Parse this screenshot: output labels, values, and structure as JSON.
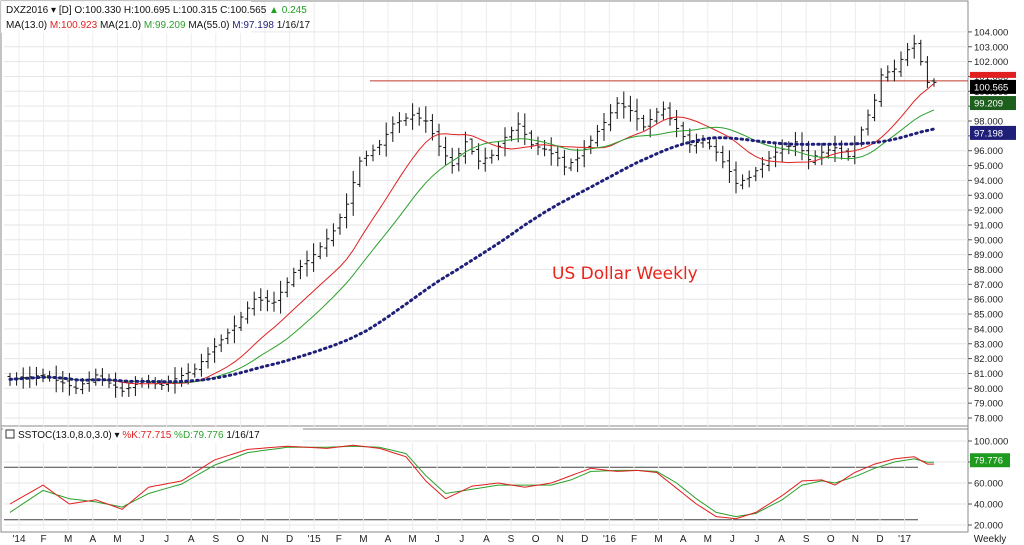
{
  "header": {
    "line1": {
      "symbol": "DXZ2016",
      "interval": "[D]",
      "open": "O:100.330",
      "high": "H:100.695",
      "low": "L:100.315",
      "close": "C:100.565",
      "change": "0.245"
    },
    "line2": {
      "ma13_label": "MA(13.0)",
      "ma13_value": "M:100.923",
      "ma21_label": "MA(21.0)",
      "ma21_value": "M:99.209",
      "ma55_label": "MA(55.0)",
      "ma55_value": "M:97.198",
      "date": "1/16/17"
    },
    "stoch": {
      "label": "SSTOC(13.0,8.0,3.0)",
      "k_value": "%K:77.715",
      "d_value": "%D:79.776",
      "date": "1/16/17"
    }
  },
  "annotation": "US Dollar Weekly",
  "colors": {
    "red": "#e02020",
    "green": "#2ca02c",
    "navy": "#1f1f7a",
    "price_bars": "#111111",
    "resistance": "#c0392b",
    "grid": "#e2e2e2"
  },
  "chart_data": [
    {
      "type": "ohlc",
      "name": "price-panel",
      "ylim": [
        77.5,
        105.0
      ],
      "y_ticks": [
        "78.000",
        "79.000",
        "80.000",
        "81.000",
        "82.000",
        "83.000",
        "84.000",
        "85.000",
        "86.000",
        "87.000",
        "88.000",
        "89.000",
        "90.000",
        "91.000",
        "92.000",
        "93.000",
        "94.000",
        "95.000",
        "96.000",
        "97.000",
        "98.000",
        "99.000",
        "100.000",
        "101.000",
        "102.000",
        "103.000",
        "104.000"
      ],
      "x_labels": [
        "'14",
        "F",
        "M",
        "A",
        "M",
        "J",
        "J",
        "A",
        "S",
        "O",
        "N",
        "D",
        "'15",
        "F",
        "M",
        "A",
        "M",
        "J",
        "J",
        "A",
        "S",
        "O",
        "N",
        "D",
        "'16",
        "F",
        "M",
        "A",
        "M",
        "J",
        "J",
        "A",
        "S",
        "O",
        "N",
        "D",
        "'17",
        "Weekly"
      ],
      "price_tags": [
        {
          "label": "100.565",
          "value": 100.565,
          "bg": "#000000",
          "fg": "#ffffff"
        },
        {
          "label": "99.209",
          "value": 99.209,
          "bg": "#1d5f1d",
          "fg": "#ffffff"
        },
        {
          "label": "97.198",
          "value": 97.198,
          "bg": "#1f1f7a",
          "fg": "#ffffff"
        }
      ],
      "resistance_level": 100.7,
      "anchors": [
        [
          0,
          80.6
        ],
        [
          5,
          80.9
        ],
        [
          10,
          80.0
        ],
        [
          13,
          80.9
        ],
        [
          17,
          79.8
        ],
        [
          20,
          80.5
        ],
        [
          23,
          80.2
        ],
        [
          28,
          81.3
        ],
        [
          31,
          82.8
        ],
        [
          34,
          84.2
        ],
        [
          37,
          86.0
        ],
        [
          40,
          85.8
        ],
        [
          43,
          87.8
        ],
        [
          46,
          89.0
        ],
        [
          49,
          90.6
        ],
        [
          51,
          92.4
        ],
        [
          53,
          95.3
        ],
        [
          56,
          96.4
        ],
        [
          58,
          97.8
        ],
        [
          61,
          98.4
        ],
        [
          63,
          98.0
        ],
        [
          65,
          96.3
        ],
        [
          67,
          95.0
        ],
        [
          69,
          96.6
        ],
        [
          71,
          95.3
        ],
        [
          73,
          95.7
        ],
        [
          75,
          96.9
        ],
        [
          77,
          97.8
        ],
        [
          79,
          96.4
        ],
        [
          81,
          96.1
        ],
        [
          83,
          95.5
        ],
        [
          84,
          94.9
        ],
        [
          86,
          95.5
        ],
        [
          88,
          96.7
        ],
        [
          90,
          97.9
        ],
        [
          92,
          99.2
        ],
        [
          94,
          98.7
        ],
        [
          96,
          97.6
        ],
        [
          98,
          98.6
        ],
        [
          99,
          98.8
        ],
        [
          101,
          97.5
        ],
        [
          103,
          96.4
        ],
        [
          105,
          96.7
        ],
        [
          107,
          95.9
        ],
        [
          109,
          94.6
        ],
        [
          110,
          93.8
        ],
        [
          112,
          94.2
        ],
        [
          114,
          95.1
        ],
        [
          116,
          95.9
        ],
        [
          118,
          96.3
        ],
        [
          119,
          96.6
        ],
        [
          121,
          95.4
        ],
        [
          123,
          95.9
        ],
        [
          125,
          96.2
        ],
        [
          127,
          95.6
        ],
        [
          129,
          97.4
        ],
        [
          131,
          99.4
        ],
        [
          132,
          101.1
        ],
        [
          134,
          101.5
        ],
        [
          136,
          102.8
        ],
        [
          137,
          103.2
        ],
        [
          138,
          102.0
        ],
        [
          139,
          100.6
        ]
      ],
      "series": [
        {
          "name": "MA(13.0)",
          "period": 13,
          "color": "#e02020"
        },
        {
          "name": "MA(21.0)",
          "period": 21,
          "color": "#2ca02c"
        },
        {
          "name": "MA(55.0)",
          "period": 55,
          "color": "#1f1f7a",
          "style": "dotted"
        }
      ]
    },
    {
      "type": "line",
      "name": "stochastic-panel",
      "ylim": [
        18,
        108
      ],
      "y_ticks": [
        "20.000",
        "40.000",
        "60.000",
        "80.000",
        "100.000"
      ],
      "levels": [
        25,
        75
      ],
      "last_value_tag": {
        "label": "79.776",
        "value": 79.776,
        "bg": "#1e9a1e",
        "fg": "#ffffff"
      },
      "k_anchors": [
        [
          0,
          40
        ],
        [
          5,
          58
        ],
        [
          9,
          40
        ],
        [
          13,
          44
        ],
        [
          17,
          35
        ],
        [
          21,
          56
        ],
        [
          26,
          62
        ],
        [
          31,
          82
        ],
        [
          36,
          92
        ],
        [
          42,
          95
        ],
        [
          48,
          93
        ],
        [
          52,
          96
        ],
        [
          56,
          93
        ],
        [
          60,
          85
        ],
        [
          63,
          62
        ],
        [
          66,
          45
        ],
        [
          70,
          57
        ],
        [
          74,
          60
        ],
        [
          78,
          56
        ],
        [
          82,
          60
        ],
        [
          85,
          67
        ],
        [
          88,
          74
        ],
        [
          92,
          71
        ],
        [
          95,
          72
        ],
        [
          98,
          70
        ],
        [
          101,
          55
        ],
        [
          104,
          40
        ],
        [
          107,
          28
        ],
        [
          110,
          26
        ],
        [
          113,
          32
        ],
        [
          117,
          48
        ],
        [
          120,
          62
        ],
        [
          123,
          63
        ],
        [
          125,
          58
        ],
        [
          128,
          70
        ],
        [
          131,
          78
        ],
        [
          134,
          83
        ],
        [
          137,
          85
        ],
        [
          139,
          78
        ]
      ],
      "d_anchors": [
        [
          0,
          32
        ],
        [
          5,
          53
        ],
        [
          9,
          45
        ],
        [
          13,
          42
        ],
        [
          17,
          37
        ],
        [
          21,
          50
        ],
        [
          26,
          59
        ],
        [
          31,
          77
        ],
        [
          36,
          89
        ],
        [
          42,
          94
        ],
        [
          48,
          94
        ],
        [
          52,
          95
        ],
        [
          56,
          94
        ],
        [
          60,
          88
        ],
        [
          63,
          67
        ],
        [
          66,
          50
        ],
        [
          70,
          54
        ],
        [
          74,
          58
        ],
        [
          78,
          58
        ],
        [
          82,
          58
        ],
        [
          85,
          63
        ],
        [
          88,
          71
        ],
        [
          92,
          72
        ],
        [
          95,
          72
        ],
        [
          98,
          71
        ],
        [
          101,
          60
        ],
        [
          104,
          45
        ],
        [
          107,
          32
        ],
        [
          110,
          28
        ],
        [
          113,
          31
        ],
        [
          117,
          44
        ],
        [
          120,
          58
        ],
        [
          123,
          62
        ],
        [
          125,
          60
        ],
        [
          128,
          66
        ],
        [
          131,
          74
        ],
        [
          134,
          80
        ],
        [
          137,
          83
        ],
        [
          139,
          79.776
        ]
      ],
      "series": [
        {
          "name": "%K",
          "color": "#e02020"
        },
        {
          "name": "%D",
          "color": "#2ca02c"
        }
      ]
    }
  ]
}
